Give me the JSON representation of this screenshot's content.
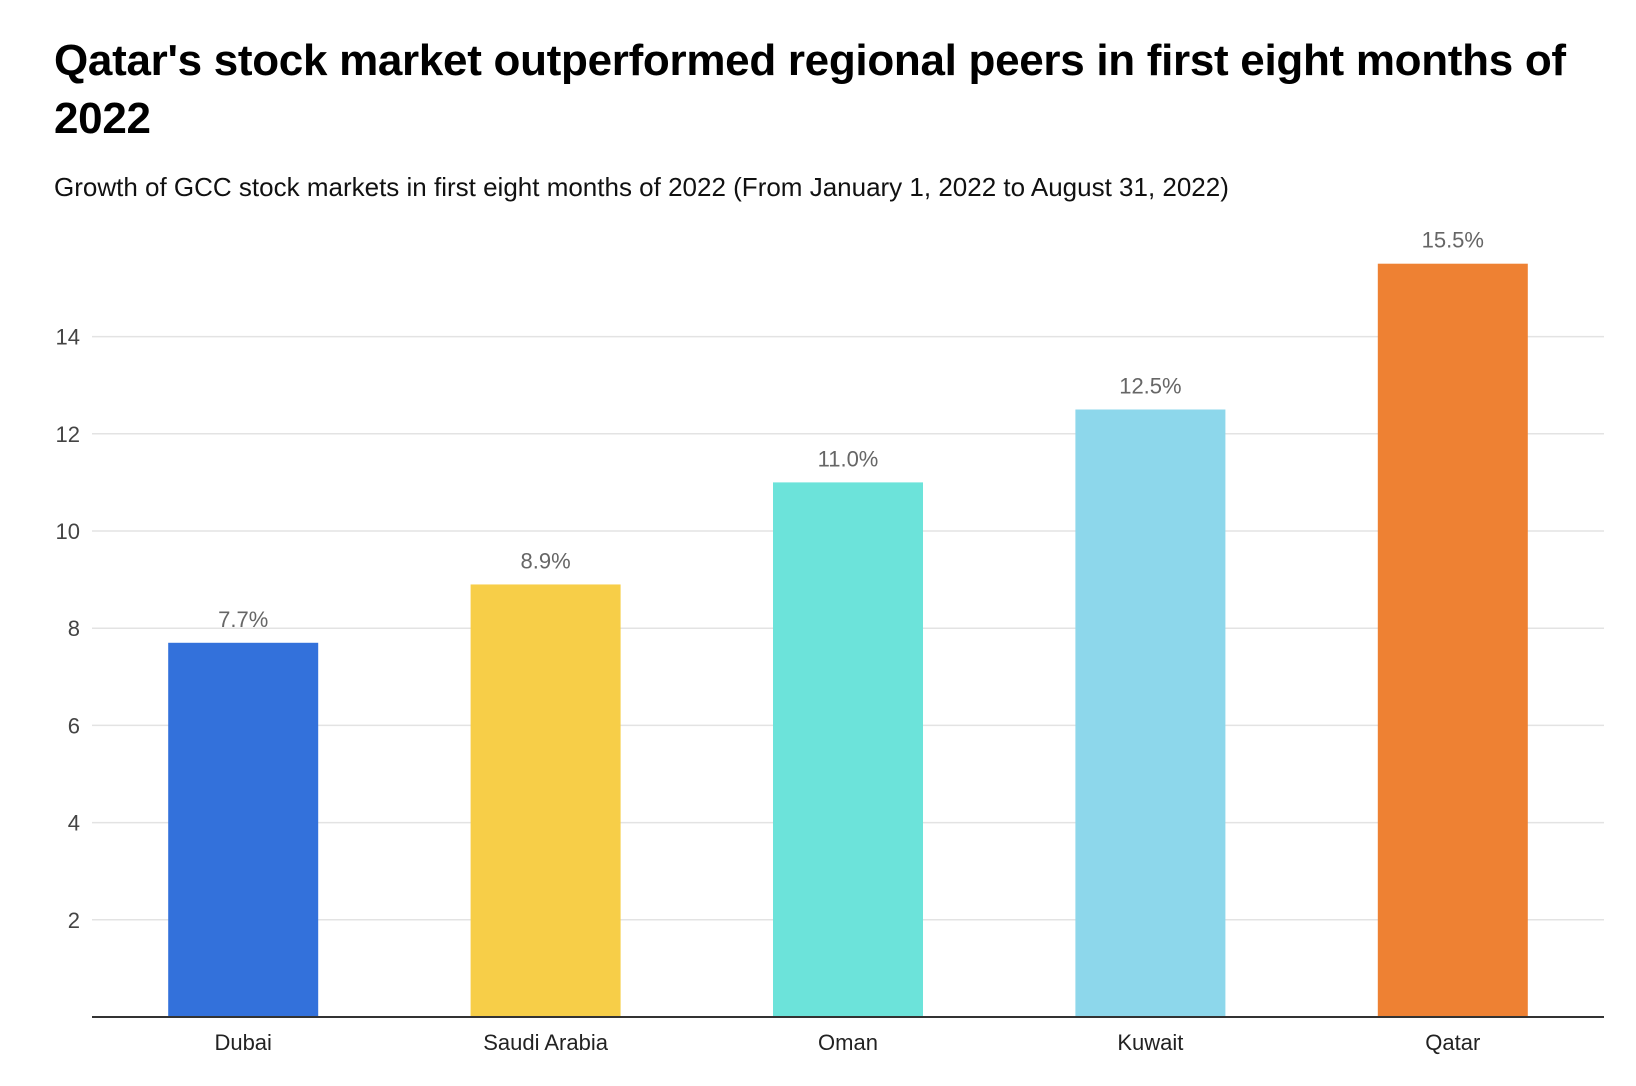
{
  "title": "Qatar's stock market outperformed regional peers in first eight months of 2022",
  "subtitle": "Growth of GCC stock markets in first eight months of 2022 (From January 1, 2022 to August 31, 2022)",
  "chart_data": {
    "type": "bar",
    "categories": [
      "Dubai",
      "Saudi Arabia",
      "Oman",
      "Kuwait",
      "Qatar"
    ],
    "values": [
      7.7,
      8.9,
      11.0,
      12.5,
      15.5
    ],
    "data_labels": [
      "7.7%",
      "8.9%",
      "11.0%",
      "12.5%",
      "15.5%"
    ],
    "colors": [
      "#3371DB",
      "#F7CE48",
      "#6CE3DA",
      "#8DD7EB",
      "#EE8133"
    ],
    "yticks": [
      2,
      4,
      6,
      8,
      10,
      12,
      14
    ],
    "ylim": [
      0,
      16
    ],
    "xlabel": "",
    "ylabel": "",
    "grid": true,
    "legend": "none",
    "gridline_color": "#e3e3e3",
    "axis_color": "#333333"
  }
}
